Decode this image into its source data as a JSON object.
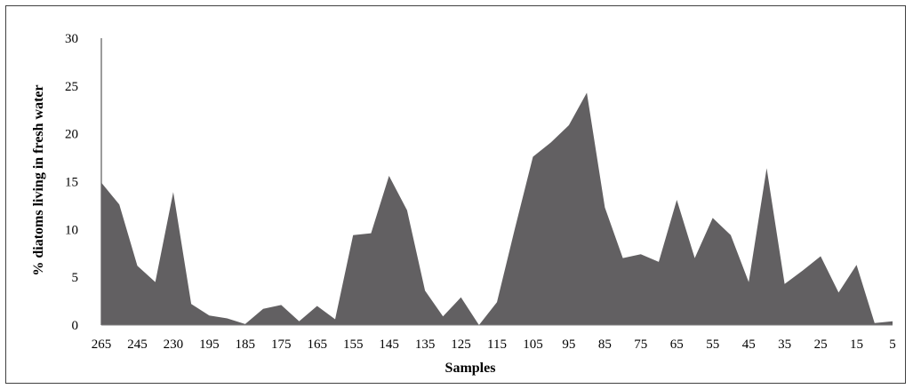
{
  "chart_data": {
    "type": "area",
    "title": "",
    "xlabel": "Samples",
    "ylabel": "% diatoms living in fresh water",
    "ylim": [
      0,
      30
    ],
    "yticks": [
      0,
      5,
      10,
      15,
      20,
      25,
      30
    ],
    "grid": false,
    "fill_color": "#626062",
    "x_tick_labels": [
      "265",
      "245",
      "230",
      "195",
      "185",
      "175",
      "165",
      "155",
      "145",
      "135",
      "125",
      "115",
      "105",
      "95",
      "85",
      "75",
      "65",
      "55",
      "45",
      "35",
      "25",
      "15",
      "5"
    ],
    "series": [
      {
        "x": [
          "265",
          "255",
          "245",
          "235",
          "230",
          "200",
          "195",
          "190",
          "185",
          "180",
          "175",
          "170",
          "165",
          "160",
          "155",
          "150",
          "145",
          "140",
          "135",
          "130",
          "125",
          "120",
          "115",
          "110",
          "105",
          "100",
          "95",
          "90",
          "85",
          "80",
          "75",
          "70",
          "65",
          "60",
          "55",
          "50",
          "45",
          "40",
          "35",
          "30",
          "25",
          "20",
          "15",
          "10",
          "5"
        ],
        "values": [
          14.9,
          12.6,
          6.2,
          4.5,
          13.9,
          2.2,
          1.0,
          0.7,
          0.1,
          1.7,
          2.1,
          0.4,
          2.0,
          0.6,
          9.4,
          9.6,
          15.6,
          12.0,
          3.6,
          0.9,
          2.9,
          0.0,
          2.4,
          10.1,
          17.6,
          19.1,
          20.9,
          24.3,
          12.3,
          7.0,
          7.4,
          6.6,
          13.1,
          7.0,
          11.2,
          9.4,
          4.5,
          16.4,
          4.3,
          5.7,
          7.2,
          3.4,
          6.3,
          0.2,
          0.4
        ]
      }
    ]
  }
}
